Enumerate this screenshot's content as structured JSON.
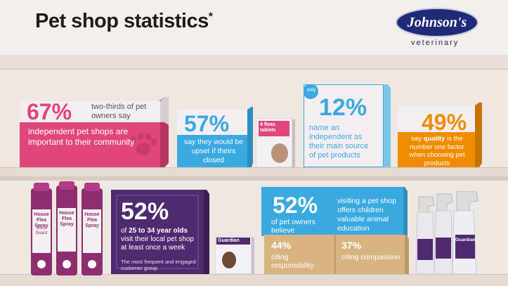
{
  "header": {
    "title": "Pet shop statistics",
    "asterisk": "*",
    "brand_name": "Johnson's",
    "brand_subtitle": "veterinary"
  },
  "stats": {
    "s67": {
      "value": "67%",
      "headline": "two-thirds of pet owners say",
      "body": "independent pet shops are important to their community"
    },
    "s57": {
      "value": "57%",
      "body": "say they would be upset if theirs closed"
    },
    "s12": {
      "badge": "only",
      "value": "12%",
      "body": "name an independent as their main source of pet products"
    },
    "s49": {
      "value": "49%",
      "body_pre": "say ",
      "body_bold": "quality",
      "body_post": " is the number one factor when choosing pet products"
    },
    "s52a": {
      "value": "52%",
      "line1_pre": "of ",
      "line1_bold": "25 to 34 year olds",
      "line1_post": " visit their local pet shop at least once a week",
      "note": "The most frequent and engaged customer group"
    },
    "s52b": {
      "value": "52%",
      "body": "of pet owners believe"
    },
    "education": {
      "body": "visiting a pet shop offers children valuable animal education"
    },
    "s44": {
      "value": "44%",
      "body": "citing responsibility"
    },
    "s37": {
      "value": "37%",
      "body": "citing compassion"
    }
  },
  "products": {
    "flea_spray_label": "House Flea Spray",
    "flea_spray_sub": "Extra Guard",
    "tablets_label": "4 fleas tablets",
    "guardian_label": "Guardian"
  },
  "colors": {
    "pink": "#e0457b",
    "blue": "#3aa9e0",
    "orange": "#f08c00",
    "purple": "#4f2a6e",
    "tan": "#d9b382",
    "dark_text": "#1d1d1d"
  }
}
